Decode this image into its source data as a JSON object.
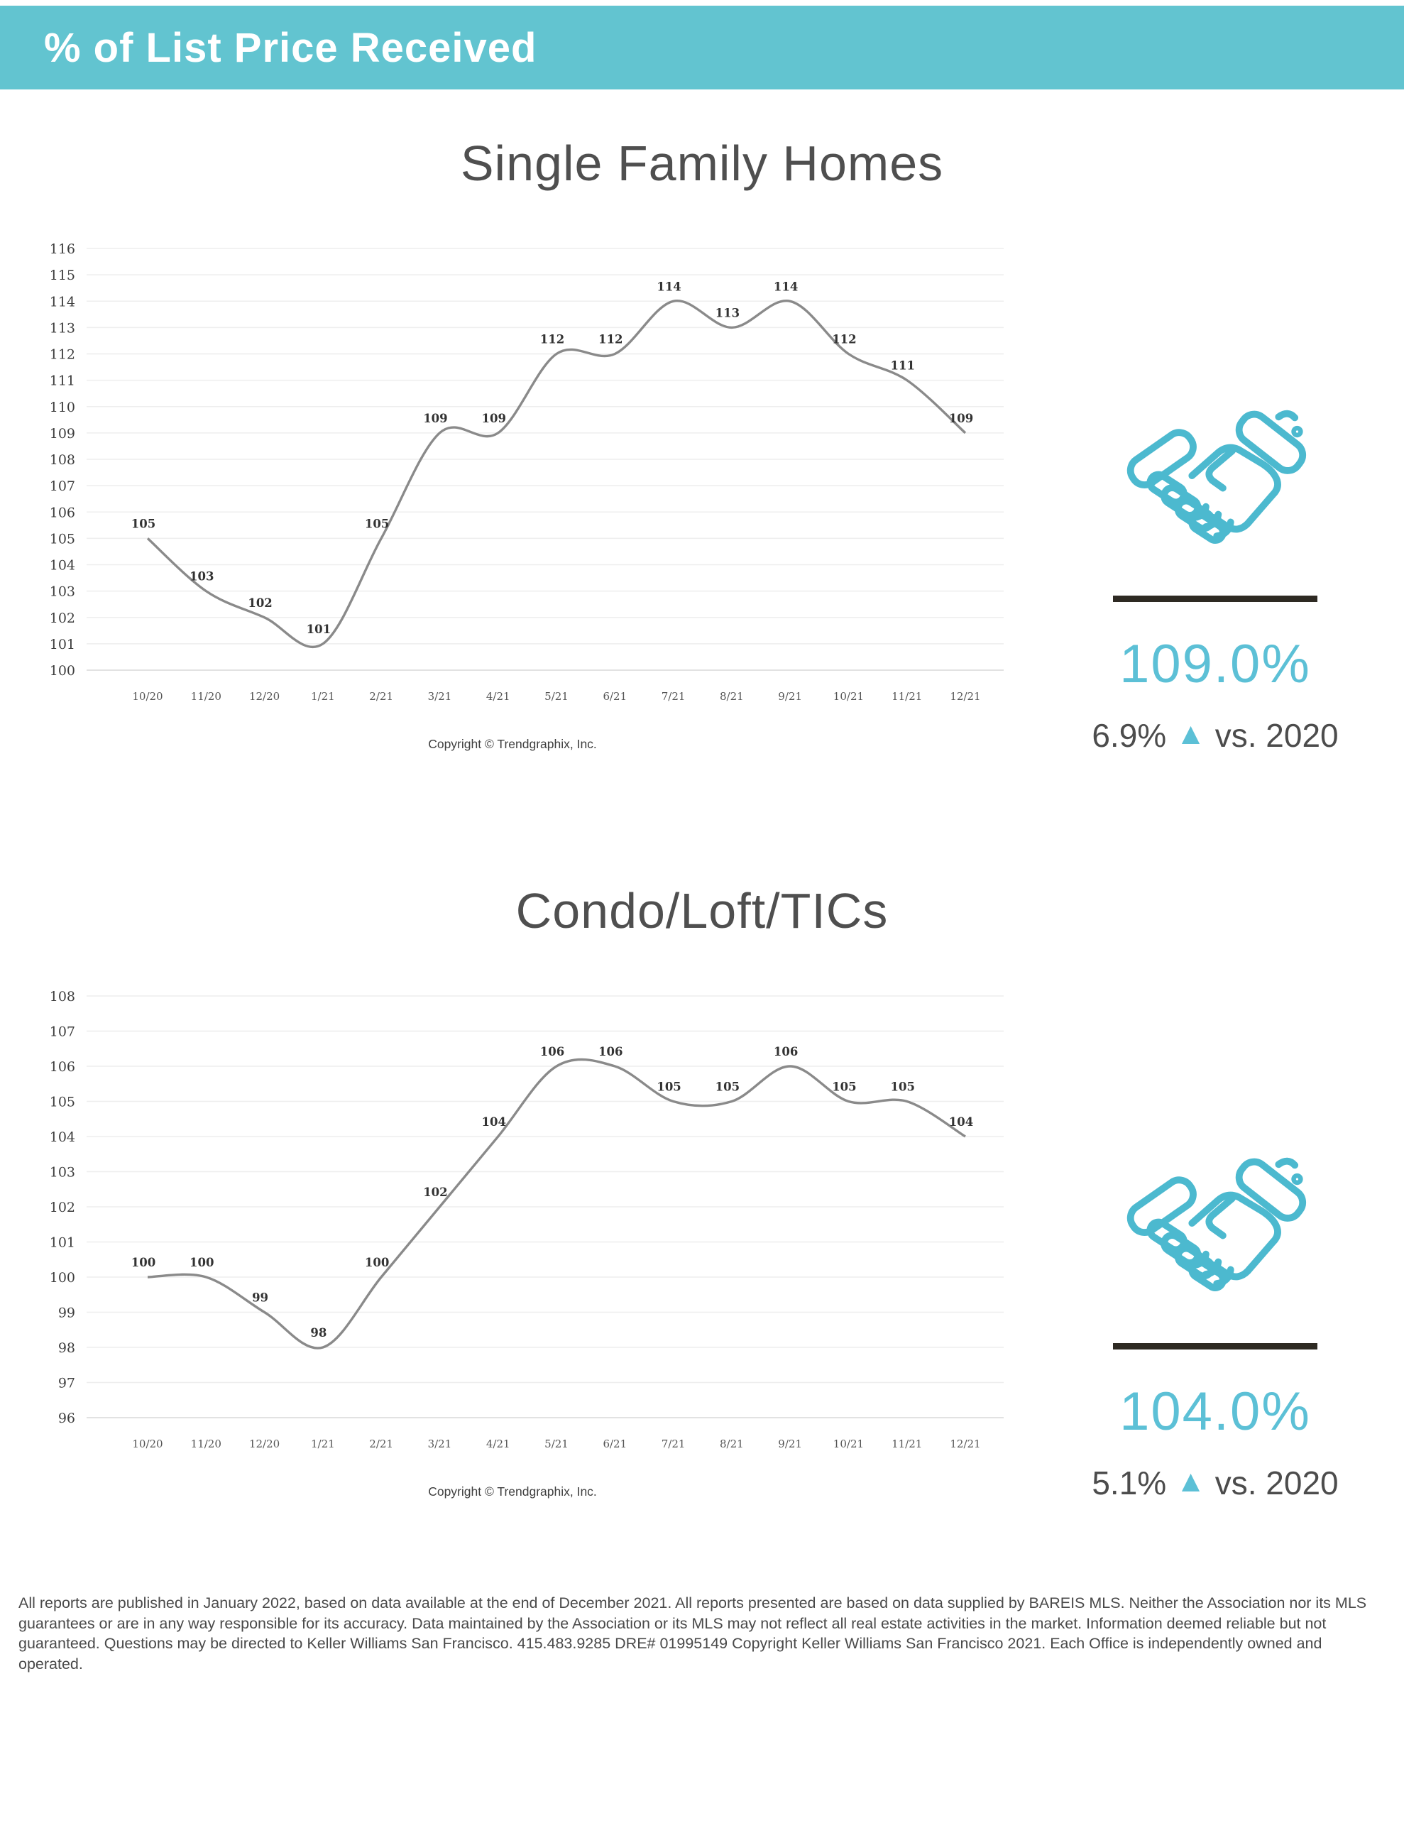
{
  "header": {
    "title": "% of List Price Received"
  },
  "sections": [
    {
      "title": "Single Family Homes",
      "copyright": "Copyright © Trendgraphix, Inc.",
      "stat": {
        "icon": "handshake-icon",
        "value": "109.0%",
        "delta_value": "6.9%",
        "delta_direction": "up",
        "delta_suffix": "vs. 2020"
      }
    },
    {
      "title": "Condo/Loft/TICs",
      "copyright": "Copyright © Trendgraphix, Inc.",
      "stat": {
        "icon": "handshake-icon",
        "value": "104.0%",
        "delta_value": "5.1%",
        "delta_direction": "up",
        "delta_suffix": "vs. 2020"
      }
    }
  ],
  "chart_data": [
    {
      "type": "line",
      "title": "Single Family Homes",
      "x": [
        "10/20",
        "11/20",
        "12/20",
        "1/21",
        "2/21",
        "3/21",
        "4/21",
        "5/21",
        "6/21",
        "7/21",
        "8/21",
        "9/21",
        "10/21",
        "11/21",
        "12/21"
      ],
      "series": [
        {
          "name": "% of List Price Received",
          "values": [
            105,
            103,
            102,
            101,
            105,
            109,
            109,
            112,
            112,
            114,
            113,
            114,
            112,
            111,
            109
          ]
        }
      ],
      "ylim": [
        100,
        116
      ],
      "ytick_step": 1,
      "grid": "horizontal",
      "legend": "none",
      "data_labels": true,
      "line_color": "#8a8a8a"
    },
    {
      "type": "line",
      "title": "Condo/Loft/TICs",
      "x": [
        "10/20",
        "11/20",
        "12/20",
        "1/21",
        "2/21",
        "3/21",
        "4/21",
        "5/21",
        "6/21",
        "7/21",
        "8/21",
        "9/21",
        "10/21",
        "11/21",
        "12/21"
      ],
      "series": [
        {
          "name": "% of List Price Received",
          "values": [
            100,
            100,
            99,
            98,
            100,
            102,
            104,
            106,
            106,
            105,
            105,
            106,
            105,
            105,
            104
          ]
        }
      ],
      "ylim": [
        96,
        108
      ],
      "ytick_step": 1,
      "grid": "horizontal",
      "legend": "none",
      "data_labels": true,
      "line_color": "#8a8a8a"
    }
  ],
  "icons": {
    "delta_up": "▲"
  },
  "colors": {
    "header_bg": "#62c4d0",
    "accent": "#5cc0d6",
    "icon_stroke": "#4cb9cf",
    "divider": "#2e2a23",
    "line": "#8a8a8a",
    "title_text": "#4f4f4f"
  },
  "footer": {
    "text": "All reports are published in January 2022, based on data available at the end of December 2021. All reports presented are based on data supplied by BAREIS MLS. Neither the Association nor its MLS guarantees or are in any way responsible for its accuracy. Data maintained by the Association or its MLS may not reflect all real estate activities in the market. Information deemed reliable but not guaranteed. Questions may be directed to Keller Williams San Francisco. 415.483.9285 DRE# 01995149 Copyright Keller Williams San Francisco 2021. Each Office is independently owned and operated."
  }
}
